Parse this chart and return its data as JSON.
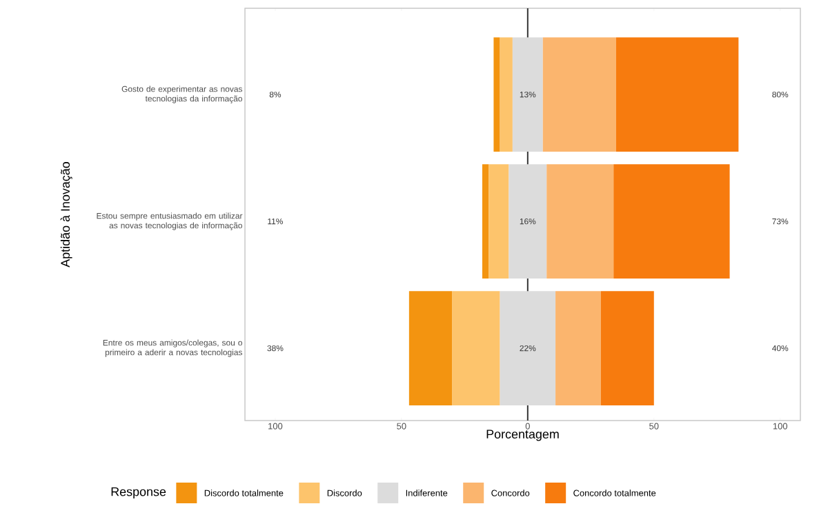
{
  "chart_data": {
    "type": "bar",
    "orientation": "horizontal",
    "xlabel": "Porcentagem",
    "ylabel": "Aptidão à Inovação",
    "legend_title": "Response",
    "legend": "bottom",
    "categories": [
      "Gosto de experimentar as novas tecnologias da informação",
      "Estou sempre entusiasmado em utilizar as novas tecnologias de informação",
      "Entre os meus amigos/colegas, sou o primeiro a aderir a novas tecnologias"
    ],
    "series": [
      {
        "name": "Discordo totalmente",
        "color": "#f39410",
        "base": [
          -13.5,
          -18,
          -47
        ],
        "values": [
          2.5,
          2.5,
          17
        ]
      },
      {
        "name": "Discordo",
        "color": "#fdc46c",
        "base": [
          -11,
          -15.5,
          -30
        ],
        "values": [
          5,
          8,
          19
        ]
      },
      {
        "name": "Indiferente",
        "color": "#dcdcdc",
        "base": [
          -6,
          -7.5,
          -11
        ],
        "values": [
          12,
          15,
          22
        ]
      },
      {
        "name": "Concordo",
        "color": "#fbb56e",
        "base": [
          6,
          7.5,
          11
        ],
        "values": [
          29,
          26.5,
          18
        ]
      },
      {
        "name": "Concordo totalmente",
        "color": "#f77b0e",
        "base": [
          35,
          34,
          29
        ],
        "values": [
          48.5,
          46,
          21
        ]
      }
    ],
    "xlim": [
      -112,
      108
    ],
    "xticks": [
      {
        "value": -100,
        "label": "100"
      },
      {
        "value": -50,
        "label": "50"
      },
      0,
      50,
      100
    ],
    "ref_lines": [
      {
        "axis": "x",
        "value": 0,
        "color": "#333333"
      }
    ],
    "annotations": [
      "8%",
      "13%",
      "80%",
      "11%",
      "16%",
      "73%",
      "38%",
      "22%",
      "40%"
    ]
  }
}
